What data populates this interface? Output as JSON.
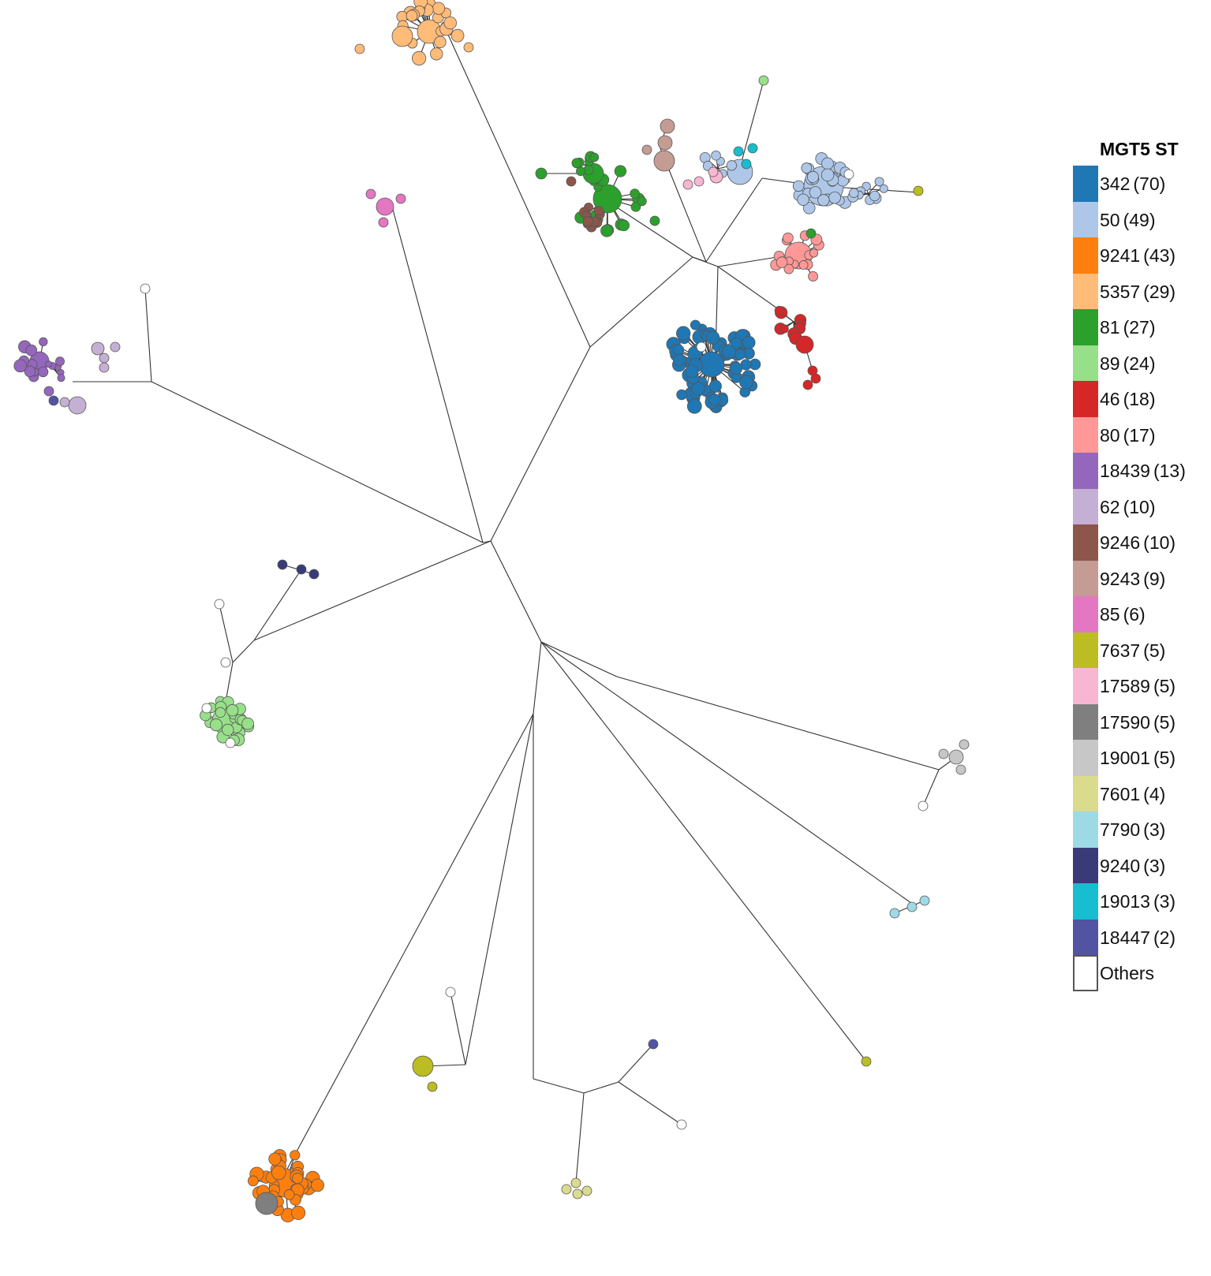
{
  "legend": {
    "title": "MGT5 ST",
    "items": [
      {
        "st": "342",
        "count": "(70)",
        "color": "#1f77b4"
      },
      {
        "st": "50",
        "count": "(49)",
        "color": "#aec7e8"
      },
      {
        "st": "9241",
        "count": "(43)",
        "color": "#ff7f0e"
      },
      {
        "st": "5357",
        "count": "(29)",
        "color": "#ffbb78"
      },
      {
        "st": "81",
        "count": "(27)",
        "color": "#2ca02c"
      },
      {
        "st": "89",
        "count": "(24)",
        "color": "#98df8a"
      },
      {
        "st": "46",
        "count": "(18)",
        "color": "#d62728"
      },
      {
        "st": "80",
        "count": "(17)",
        "color": "#ff9896"
      },
      {
        "st": "18439",
        "count": "(13)",
        "color": "#9467bd"
      },
      {
        "st": "62",
        "count": "(10)",
        "color": "#c5b0d5"
      },
      {
        "st": "9246",
        "count": "(10)",
        "color": "#8c564b"
      },
      {
        "st": "9243",
        "count": "(9)",
        "color": "#c49c94"
      },
      {
        "st": "85",
        "count": "(6)",
        "color": "#e377c2"
      },
      {
        "st": "7637",
        "count": "(5)",
        "color": "#bcbd22"
      },
      {
        "st": "17589",
        "count": "(5)",
        "color": "#f7b6d2"
      },
      {
        "st": "17590",
        "count": "(5)",
        "color": "#7f7f7f"
      },
      {
        "st": "19001",
        "count": "(5)",
        "color": "#c7c7c7"
      },
      {
        "st": "7601",
        "count": "(4)",
        "color": "#dbdb8d"
      },
      {
        "st": "7790",
        "count": "(3)",
        "color": "#9edae5"
      },
      {
        "st": "9240",
        "count": "(3)",
        "color": "#393b79"
      },
      {
        "st": "19013",
        "count": "(3)",
        "color": "#17becf"
      },
      {
        "st": "18447",
        "count": "(2)",
        "color": "#5254a3"
      }
    ],
    "others_label": "Others",
    "others_color": "#ffffff"
  },
  "diagram": {
    "type": "minimum spanning tree",
    "clusters": [
      {
        "name": "342",
        "nodes": 70,
        "color": "#1f77b4"
      },
      {
        "name": "50",
        "nodes": 49,
        "color": "#aec7e8"
      },
      {
        "name": "9241",
        "nodes": 43,
        "color": "#ff7f0e"
      },
      {
        "name": "5357",
        "nodes": 29,
        "color": "#ffbb78"
      },
      {
        "name": "81",
        "nodes": 27,
        "color": "#2ca02c"
      },
      {
        "name": "89",
        "nodes": 24,
        "color": "#98df8a"
      },
      {
        "name": "46",
        "nodes": 18,
        "color": "#d62728"
      },
      {
        "name": "80",
        "nodes": 17,
        "color": "#ff9896"
      },
      {
        "name": "18439",
        "nodes": 13,
        "color": "#9467bd"
      },
      {
        "name": "62",
        "nodes": 10,
        "color": "#c5b0d5"
      },
      {
        "name": "9246",
        "nodes": 10,
        "color": "#8c564b"
      },
      {
        "name": "9243",
        "nodes": 9,
        "color": "#c49c94"
      },
      {
        "name": "85",
        "nodes": 6,
        "color": "#e377c2"
      },
      {
        "name": "7637",
        "nodes": 5,
        "color": "#bcbd22"
      },
      {
        "name": "17589",
        "nodes": 5,
        "color": "#f7b6d2"
      },
      {
        "name": "17590",
        "nodes": 5,
        "color": "#7f7f7f"
      },
      {
        "name": "19001",
        "nodes": 5,
        "color": "#c7c7c7"
      },
      {
        "name": "7601",
        "nodes": 4,
        "color": "#dbdb8d"
      },
      {
        "name": "7790",
        "nodes": 3,
        "color": "#9edae5"
      },
      {
        "name": "9240",
        "nodes": 3,
        "color": "#393b79"
      },
      {
        "name": "19013",
        "nodes": 3,
        "color": "#17becf"
      },
      {
        "name": "18447",
        "nodes": 2,
        "color": "#5254a3"
      }
    ],
    "edge_color": "#333333",
    "node_outline_color": "#555555"
  }
}
